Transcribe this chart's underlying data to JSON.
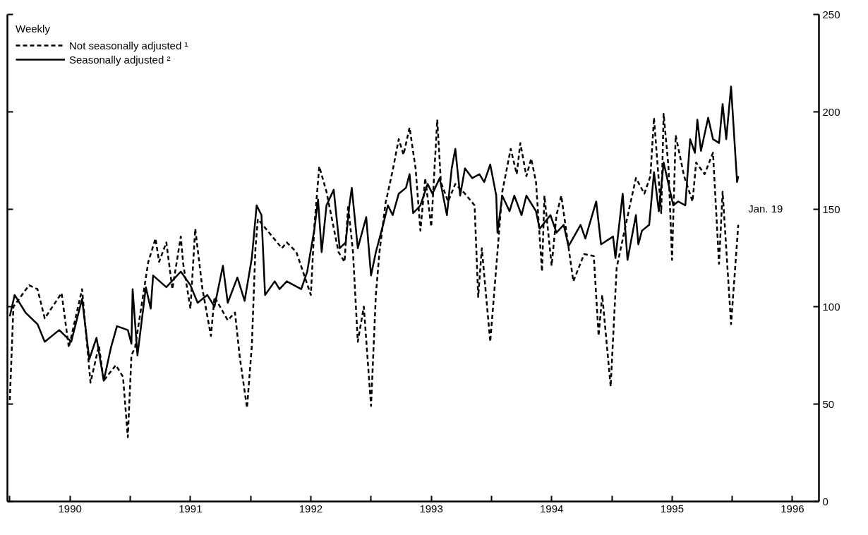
{
  "chart_data": {
    "type": "line",
    "legend_title": "Weekly",
    "legend": "top left",
    "xlim": [
      1989.98,
      1996.72
    ],
    "ylim": [
      0,
      250
    ],
    "xticks": [
      {
        "value": 1990,
        "label": null
      },
      {
        "value": 1990.5,
        "label": "1990"
      },
      {
        "value": 1991,
        "label": null
      },
      {
        "value": 1991.5,
        "label": "1991"
      },
      {
        "value": 1992,
        "label": null
      },
      {
        "value": 1992.5,
        "label": "1992"
      },
      {
        "value": 1993,
        "label": null
      },
      {
        "value": 1993.5,
        "label": "1993"
      },
      {
        "value": 1994,
        "label": null
      },
      {
        "value": 1994.5,
        "label": "1994"
      },
      {
        "value": 1995,
        "label": null
      },
      {
        "value": 1995.5,
        "label": "1995"
      },
      {
        "value": 1996,
        "label": null
      },
      {
        "value": 1996.5,
        "label": "1996"
      }
    ],
    "yticks": [
      0,
      50,
      100,
      150,
      200,
      250
    ],
    "annotations": [
      "Jan. 19"
    ],
    "series": [
      {
        "name": "Not seasonally adjusted ¹",
        "color": "#000000",
        "line_style": "dashed",
        "x": [
          1990.0,
          1990.03,
          1990.16,
          1990.23,
          1990.29,
          1990.43,
          1990.49,
          1990.6,
          1990.67,
          1990.74,
          1990.78,
          1990.88,
          1990.94,
          1990.98,
          1991.01,
          1991.04,
          1991.15,
          1991.21,
          1991.24,
          1991.3,
          1991.35,
          1991.42,
          1991.44,
          1991.5,
          1991.54,
          1991.6,
          1991.67,
          1991.7,
          1991.81,
          1991.87,
          1991.91,
          1991.97,
          1992.01,
          1992.04,
          1992.06,
          1992.18,
          1992.26,
          1992.3,
          1992.38,
          1992.5,
          1992.53,
          1992.57,
          1992.63,
          1992.73,
          1992.78,
          1992.81,
          1992.85,
          1992.89,
          1992.94,
          1993.0,
          1993.04,
          1993.07,
          1993.12,
          1993.18,
          1993.23,
          1993.27,
          1993.32,
          1993.37,
          1993.41,
          1993.45,
          1993.5,
          1993.55,
          1993.58,
          1993.64,
          1993.7,
          1993.78,
          1993.86,
          1993.89,
          1993.92,
          1993.99,
          1994.05,
          1994.09,
          1994.16,
          1994.21,
          1994.24,
          1994.29,
          1994.33,
          1994.37,
          1994.42,
          1994.44,
          1994.5,
          1994.54,
          1994.58,
          1994.68,
          1994.77,
          1994.85,
          1994.89,
          1994.92,
          1994.99,
          1995.04,
          1995.15,
          1995.2,
          1995.27,
          1995.32,
          1995.35,
          1995.41,
          1995.43,
          1995.47,
          1995.5,
          1995.53,
          1995.6,
          1995.67,
          1995.7,
          1995.77,
          1995.84,
          1995.89,
          1995.92,
          1995.99,
          1996.05
        ],
        "values": [
          52,
          100,
          111,
          109,
          94,
          107,
          79,
          109,
          61,
          80,
          62,
          70,
          64,
          33,
          75,
          79,
          123,
          135,
          123,
          133,
          109,
          136,
          122,
          99,
          140,
          109,
          85,
          105,
          93,
          97,
          74,
          48,
          80,
          130,
          145,
          136,
          130,
          133,
          128,
          106,
          142,
          172,
          159,
          128,
          123,
          152,
          128,
          82,
          100,
          49,
          106,
          128,
          153,
          170,
          186,
          178,
          192,
          171,
          139,
          166,
          141,
          196,
          164,
          154,
          163,
          158,
          152,
          105,
          130,
          82,
          128,
          159,
          181,
          168,
          184,
          167,
          176,
          164,
          118,
          157,
          121,
          147,
          157,
          113,
          127,
          126,
          85,
          106,
          59,
          120,
          152,
          166,
          158,
          167,
          197,
          148,
          199,
          172,
          124,
          188,
          167,
          154,
          174,
          168,
          179,
          122,
          159,
          91,
          142
        ]
      },
      {
        "name": "Seasonally adjusted ²",
        "color": "#000000",
        "line_style": "solid",
        "x": [
          1990.0,
          1990.04,
          1990.13,
          1990.23,
          1990.29,
          1990.41,
          1990.51,
          1990.6,
          1990.66,
          1990.72,
          1990.78,
          1990.84,
          1990.89,
          1990.98,
          1991.01,
          1991.02,
          1991.06,
          1991.13,
          1991.17,
          1991.19,
          1991.3,
          1991.42,
          1991.5,
          1991.56,
          1991.64,
          1991.7,
          1991.77,
          1991.81,
          1991.89,
          1991.95,
          1992.01,
          1992.05,
          1992.09,
          1992.12,
          1992.2,
          1992.24,
          1992.3,
          1992.42,
          1992.47,
          1992.53,
          1992.56,
          1992.59,
          1992.63,
          1992.69,
          1992.74,
          1992.79,
          1992.82,
          1992.84,
          1992.89,
          1992.96,
          1993.0,
          1993.04,
          1993.1,
          1993.14,
          1993.18,
          1993.23,
          1993.29,
          1993.32,
          1993.35,
          1993.41,
          1993.47,
          1993.51,
          1993.57,
          1993.63,
          1993.67,
          1993.7,
          1993.74,
          1993.78,
          1993.84,
          1993.9,
          1993.94,
          1993.99,
          1994.04,
          1994.05,
          1994.09,
          1994.15,
          1994.19,
          1994.25,
          1994.29,
          1994.37,
          1994.4,
          1994.49,
          1994.54,
          1994.6,
          1994.64,
          1994.74,
          1994.78,
          1994.87,
          1994.91,
          1995.01,
          1995.03,
          1995.09,
          1995.13,
          1995.2,
          1995.22,
          1995.25,
          1995.31,
          1995.35,
          1995.39,
          1995.43,
          1995.51,
          1995.55,
          1995.61,
          1995.65,
          1995.69,
          1995.71,
          1995.74,
          1995.8,
          1995.84,
          1995.89,
          1995.92,
          1995.95,
          1995.99,
          1996.04,
          1996.05
        ],
        "values": [
          95,
          106,
          97,
          91,
          82,
          88,
          82,
          104,
          73,
          84,
          62,
          79,
          90,
          88,
          81,
          109,
          75,
          110,
          99,
          116,
          110,
          118,
          111,
          102,
          106,
          100,
          121,
          102,
          115,
          103,
          125,
          152,
          147,
          106,
          113,
          109,
          113,
          109,
          118,
          140,
          155,
          128,
          152,
          160,
          130,
          133,
          152,
          161,
          130,
          146,
          116,
          128,
          142,
          152,
          147,
          158,
          161,
          168,
          148,
          152,
          163,
          158,
          166,
          147,
          171,
          181,
          157,
          171,
          166,
          168,
          164,
          173,
          157,
          138,
          157,
          149,
          157,
          147,
          157,
          149,
          140,
          147,
          138,
          142,
          131,
          142,
          135,
          154,
          132,
          136,
          125,
          158,
          124,
          147,
          132,
          139,
          142,
          169,
          149,
          174,
          152,
          154,
          152,
          186,
          179,
          196,
          180,
          197,
          186,
          184,
          204,
          186,
          213,
          164,
          167
        ]
      }
    ]
  }
}
